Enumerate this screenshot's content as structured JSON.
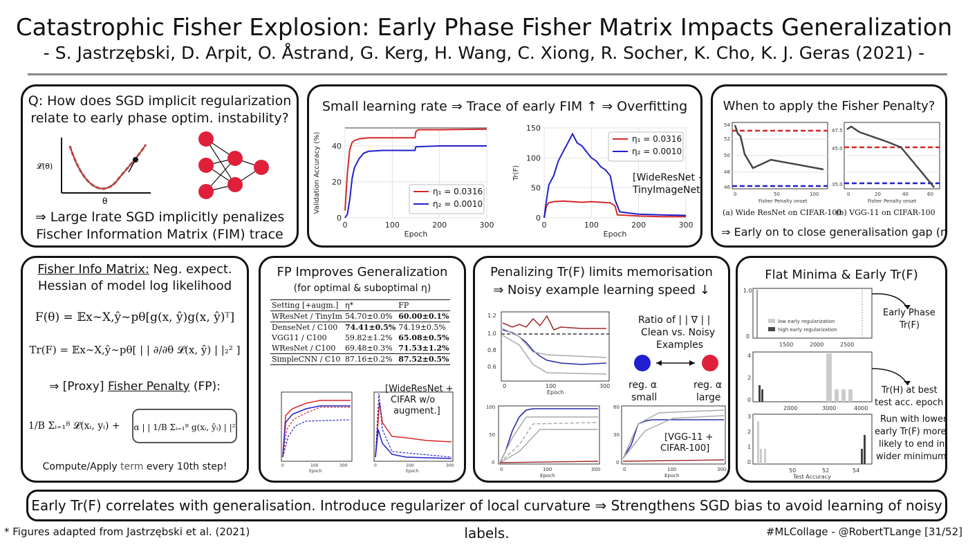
{
  "title": "Catastrophic Fisher Explosion: Early Phase Fisher Matrix Impacts Generalization",
  "subtitle": "- S. Jastrzębski, D. Arpit, O. Åstrand, G. Kerg, H. Wang, C. Xiong, R. Socher, K. Cho, K. J. Geras (2021) -",
  "q_panel": {
    "q1": "Q: How does SGD implicit regularization",
    "q2": "relate to early phase optim. instability?",
    "loss_label": "𝓛(θ)",
    "theta_label": "θ",
    "a1": "⇒ Large lrate SGD implicitly penalizes",
    "a2": "Fischer Information Matrix (FIM) trace"
  },
  "small_lr_panel": {
    "heading": "Small learning rate ⇒ Trace of early FIM ↑ ⇒ Overfitting",
    "annotation1": "[WideResNet +",
    "annotation2": "TinyImageNet]",
    "colors": {
      "eta1": "#d62728",
      "eta2": "#1f1fc8"
    }
  },
  "when_panel": {
    "heading": "When to apply the Fisher Penalty?",
    "caption_a": "(a) Wide ResNet on CIFAR-100",
    "caption_b": "(b) VGG-11 on CIFAR-100",
    "conclusion": "⇒ Early on to close generalisation gap (η*)"
  },
  "fisher_panel": {
    "h1": "Fisher Info Matrix:",
    "h1b": " Neg. expect.",
    "h2": "Hessian of model log likelihood",
    "f_eq": "F(θ) = 𝔼x∼X,ŷ∼pθ[g(x, ŷ)g(x, ŷ)ᵀ]",
    "tr_eq": "Tr(F) = 𝔼x∼X,ŷ∼pθ[ | | ∂/∂θ 𝓛(x, ŷ) | |₂² ]",
    "proxy_pre": "⇒ [Proxy] ",
    "proxy_u": "Fisher Penalty",
    "proxy_post": " (FP):",
    "loss_term": "1/B Σᵢ₌₁ᴮ 𝓛(xᵢ, yᵢ) +",
    "penalty_term": "α | | 1/B Σᵢ₌₁ᴮ g(xᵢ, ŷᵢ) | |²",
    "compute_pre": "Compute/Apply ",
    "compute_term": "term",
    "compute_post": " every 10th step!"
  },
  "fp_panel": {
    "h1": "FP Improves Generalization",
    "h2": "(for optimal & suboptimal η)",
    "table": {
      "header": [
        "Setting [+augm.]",
        "η*",
        "FP"
      ],
      "rows": [
        [
          "WResNet / TinyIm",
          "54.70±0.0%",
          "60.00±0.1%"
        ],
        [
          "DenseNet / C100",
          "74.41±0.5%",
          "74.19±0.5%"
        ],
        [
          "VGG11 / C100",
          "59.82±1.2%",
          "65.08±0.5%"
        ],
        [
          "WResNet / C100",
          "69.48±0.3%",
          "71.53±1.2%"
        ],
        [
          "SimpleCNN / C10",
          "87.16±0.2%",
          "87.52±0.5%"
        ]
      ]
    },
    "annotation1": "[WideResNet +",
    "annotation2": "CIFAR w/o",
    "annotation3": "augment.]"
  },
  "memo_panel": {
    "h1": "Penalizing Tr(F) limits memorisation",
    "h2": "⇒ Noisy example learning speed ↓",
    "ratio1": "Ratio of | | ∇ | |",
    "ratio2": "Clean vs. Noisy",
    "ratio3": "Examples",
    "reg_small1": "reg. α",
    "reg_small2": "small",
    "reg_large1": "reg. α",
    "reg_large2": "large",
    "annotation1": "[VGG-11 +",
    "annotation2": "CIFAR-100]"
  },
  "flat_panel": {
    "heading": "Flat Minima & Early Tr(F)",
    "note1a": "Early Phase",
    "note1b": "Tr(F)",
    "note2a": "Tr(H) at best",
    "note2b": "test acc. epoch",
    "note3a": "Run with lower",
    "note3b": "early Tr(F) more",
    "note3c": "likely to end in",
    "note3d": "wider minimum!"
  },
  "bottom_statement": "Early Tr(F) correlates with generalisation. Introduce regularizer of local curvature ⇒ Strengthens SGD bias to avoid learning of noisy labels.",
  "footer_left": "* Figures adapted from Jastrzębski et al. (2021)",
  "footer_right": "#MLCollage - @RobertTLange [31/52]",
  "chart_data": [
    {
      "type": "line",
      "xlabel": "Epoch",
      "ylabel": "Validation Accuracy (%)",
      "xlim": [
        0,
        300
      ],
      "ylim": [
        0,
        50
      ],
      "xticks": [
        0,
        100,
        200,
        300
      ],
      "yticks": [
        0,
        20,
        40
      ],
      "legend": "bottom-right",
      "grid": true,
      "series": [
        {
          "name": "η₁ = 0.0316",
          "color": "#d62728",
          "x": [
            0,
            5,
            10,
            15,
            20,
            30,
            50,
            80,
            100,
            148,
            150,
            155,
            200,
            250,
            300
          ],
          "y": [
            4,
            25,
            38,
            42,
            43,
            44,
            44.5,
            44.5,
            44.5,
            44.5,
            48,
            49,
            49,
            49.2,
            49.3
          ]
        },
        {
          "name": "η₂ = 0.0010",
          "color": "#1f1fc8",
          "x": [
            0,
            5,
            10,
            15,
            20,
            30,
            40,
            50,
            80,
            100,
            148,
            150,
            200,
            250,
            300
          ],
          "y": [
            0,
            2,
            10,
            22,
            28,
            33,
            36,
            37,
            37.5,
            37.5,
            37.5,
            39.5,
            40,
            40,
            40
          ]
        }
      ]
    },
    {
      "type": "line",
      "xlabel": "Epoch",
      "ylabel": "Tr(F)",
      "xlim": [
        0,
        300
      ],
      "ylim": [
        0,
        150
      ],
      "xticks": [
        0,
        100,
        200,
        300
      ],
      "yticks": [
        0,
        50,
        100,
        150
      ],
      "legend": "top-right",
      "grid": true,
      "series": [
        {
          "name": "η₁ = 0.0316",
          "color": "#d62728",
          "x": [
            0,
            5,
            10,
            20,
            40,
            60,
            80,
            100,
            120,
            140,
            150,
            155,
            200,
            250,
            300
          ],
          "y": [
            0,
            20,
            25,
            27,
            28,
            27,
            26,
            27,
            26,
            25,
            20,
            5,
            3,
            2,
            2
          ]
        },
        {
          "name": "η₂ = 0.0010",
          "color": "#1f1fc8",
          "x": [
            0,
            5,
            10,
            20,
            30,
            40,
            50,
            60,
            70,
            80,
            90,
            100,
            110,
            120,
            130,
            140,
            150,
            160,
            180,
            200,
            250,
            300
          ],
          "y": [
            0,
            30,
            55,
            70,
            95,
            110,
            125,
            140,
            125,
            120,
            110,
            100,
            95,
            85,
            80,
            70,
            30,
            10,
            8,
            6,
            5,
            4
          ]
        }
      ]
    }
  ]
}
